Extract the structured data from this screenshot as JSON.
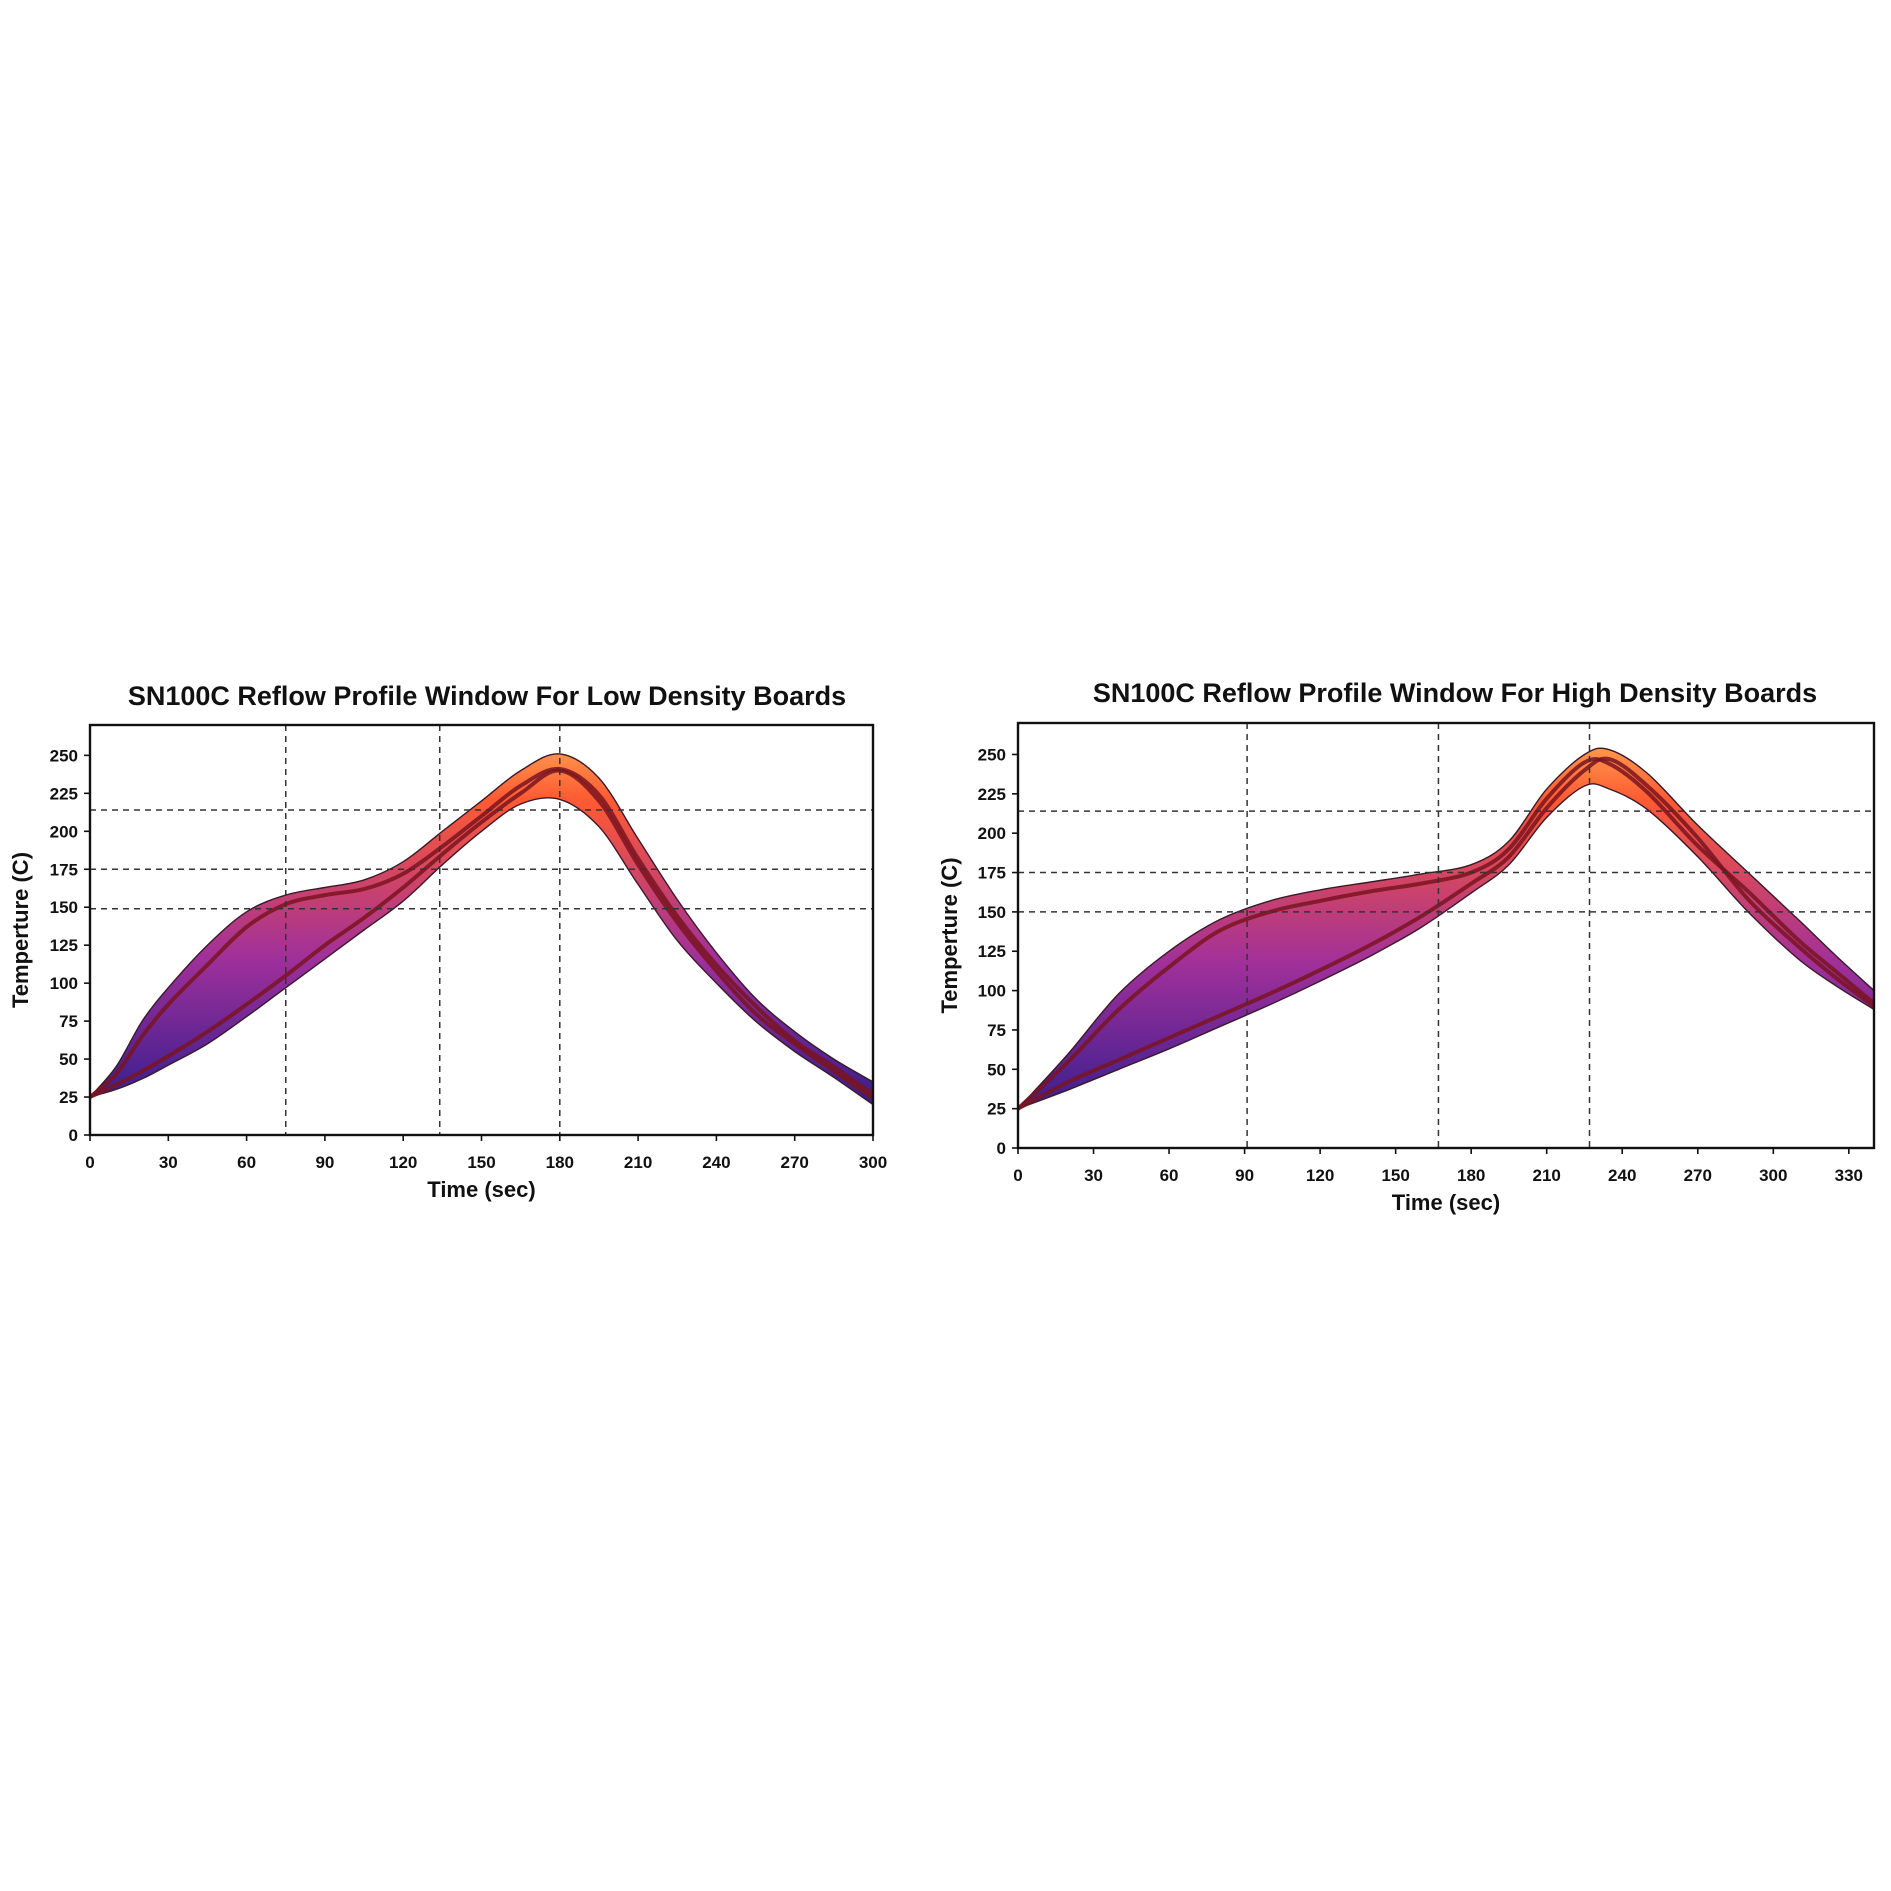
{
  "chart_data": [
    {
      "type": "area",
      "title": "SN100C Reflow Profile Window For Low Density Boards",
      "xlabel": "Time (sec)",
      "ylabel": "Temperture (C)",
      "xlim": [
        0,
        300
      ],
      "ylim": [
        0,
        270
      ],
      "xticks": [
        "0",
        "30",
        "60",
        "90",
        "120",
        "150",
        "180",
        "210",
        "240",
        "270",
        "300"
      ],
      "yticks": [
        "0",
        "25",
        "50",
        "75",
        "100",
        "125",
        "150",
        "175",
        "200",
        "225",
        "250"
      ],
      "grid": false,
      "reference_lines": {
        "x": [
          75,
          134,
          180
        ],
        "y": [
          149,
          175,
          214
        ]
      },
      "colors": {
        "low": "#1e1a8c",
        "mid": "#a0309a",
        "high": "#ff5a32",
        "peak": "#ffa250",
        "line": "#7a1420"
      },
      "series": [
        {
          "role": "upper_bound",
          "x": [
            0,
            10,
            20,
            30,
            45,
            60,
            75,
            90,
            105,
            120,
            135,
            150,
            165,
            180,
            195,
            210,
            225,
            240,
            255,
            270,
            285,
            300
          ],
          "y": [
            25,
            45,
            75,
            97,
            125,
            147,
            158,
            163,
            168,
            180,
            200,
            220,
            240,
            251,
            235,
            195,
            155,
            120,
            90,
            68,
            50,
            35
          ]
        },
        {
          "role": "lower_bound",
          "x": [
            0,
            10,
            20,
            30,
            45,
            60,
            75,
            90,
            105,
            120,
            135,
            150,
            165,
            180,
            195,
            210,
            225,
            240,
            255,
            270,
            285,
            300
          ],
          "y": [
            25,
            30,
            37,
            46,
            60,
            78,
            97,
            116,
            135,
            154,
            178,
            200,
            218,
            221,
            203,
            165,
            128,
            100,
            75,
            55,
            38,
            20
          ]
        },
        {
          "role": "profile_upper",
          "x": [
            0,
            10,
            20,
            30,
            45,
            60,
            75,
            90,
            105,
            120,
            135,
            150,
            165,
            180,
            195,
            210,
            225,
            240,
            255,
            270,
            285,
            300
          ],
          "y": [
            25,
            40,
            65,
            86,
            112,
            137,
            152,
            158,
            162,
            172,
            190,
            210,
            230,
            241,
            224,
            182,
            144,
            112,
            85,
            62,
            45,
            27
          ]
        },
        {
          "role": "profile_lower",
          "x": [
            0,
            10,
            20,
            30,
            45,
            60,
            75,
            90,
            105,
            120,
            135,
            150,
            165,
            180,
            195,
            210,
            225,
            240,
            255,
            270,
            285,
            300
          ],
          "y": [
            25,
            33,
            42,
            52,
            68,
            86,
            105,
            125,
            143,
            163,
            185,
            206,
            225,
            240,
            220,
            178,
            140,
            108,
            80,
            60,
            42,
            24
          ]
        }
      ]
    },
    {
      "type": "area",
      "title": "SN100C Reflow Profile Window For High Density Boards",
      "xlabel": "Time (sec)",
      "ylabel": "Temperture (C)",
      "xlim": [
        0,
        340
      ],
      "ylim": [
        0,
        270
      ],
      "xticks": [
        "0",
        "30",
        "60",
        "90",
        "120",
        "150",
        "180",
        "210",
        "240",
        "270",
        "300",
        "330"
      ],
      "yticks": [
        "0",
        "25",
        "50",
        "75",
        "100",
        "125",
        "150",
        "175",
        "200",
        "225",
        "250"
      ],
      "grid": false,
      "reference_lines": {
        "x": [
          91,
          167,
          227
        ],
        "y": [
          150,
          175,
          214
        ]
      },
      "colors": {
        "low": "#1e1a8c",
        "mid": "#a0309a",
        "high": "#ff5a32",
        "peak": "#ffa250",
        "line": "#7a1420"
      },
      "series": [
        {
          "role": "upper_bound",
          "x": [
            0,
            20,
            40,
            60,
            80,
            100,
            120,
            140,
            160,
            180,
            195,
            210,
            225,
            235,
            250,
            270,
            290,
            310,
            325,
            340
          ],
          "y": [
            25,
            60,
            98,
            125,
            145,
            157,
            164,
            169,
            174,
            180,
            195,
            228,
            250,
            253,
            238,
            205,
            175,
            145,
            122,
            100
          ]
        },
        {
          "role": "lower_bound",
          "x": [
            0,
            20,
            40,
            60,
            80,
            100,
            120,
            140,
            160,
            180,
            195,
            210,
            225,
            235,
            250,
            270,
            290,
            310,
            325,
            340
          ],
          "y": [
            25,
            37,
            50,
            63,
            77,
            91,
            106,
            122,
            140,
            162,
            180,
            210,
            230,
            228,
            215,
            185,
            150,
            120,
            103,
            88
          ]
        },
        {
          "role": "profile_upper",
          "x": [
            0,
            20,
            40,
            60,
            80,
            100,
            120,
            140,
            160,
            180,
            195,
            210,
            225,
            235,
            250,
            270,
            290,
            310,
            325,
            340
          ],
          "y": [
            25,
            55,
            88,
            115,
            138,
            150,
            157,
            163,
            168,
            175,
            190,
            222,
            245,
            244,
            226,
            192,
            163,
            132,
            112,
            92
          ]
        },
        {
          "role": "profile_lower",
          "x": [
            0,
            20,
            40,
            60,
            80,
            100,
            120,
            140,
            160,
            180,
            195,
            210,
            225,
            235,
            250,
            270,
            290,
            310,
            325,
            340
          ],
          "y": [
            25,
            42,
            56,
            70,
            84,
            98,
            113,
            129,
            147,
            168,
            185,
            216,
            240,
            247,
            230,
            197,
            158,
            128,
            108,
            90
          ]
        }
      ]
    }
  ]
}
